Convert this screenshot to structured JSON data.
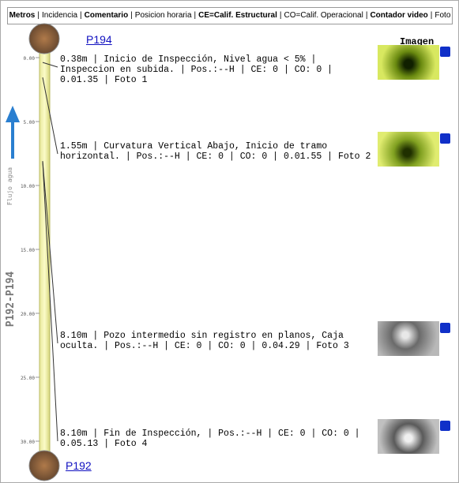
{
  "legend": {
    "separator": "|",
    "items": [
      {
        "text": "Metros",
        "bold": true
      },
      {
        "text": "Incidencia",
        "bold": false
      },
      {
        "text": "Comentario",
        "bold": true
      },
      {
        "text": "Posicion horaria",
        "bold": false
      },
      {
        "text": "CE=Calif. Estructural",
        "bold": true
      },
      {
        "text": "CO=Calif. Operacional",
        "bold": false
      },
      {
        "text": "Contador video",
        "bold": true
      },
      {
        "text": "Foto",
        "bold": false
      }
    ]
  },
  "start_node": "P194",
  "end_node": "P192",
  "image_header": "Imagen",
  "section_label": "P192-P194",
  "flow_label": "Flujo agua",
  "scale": {
    "range": [
      0,
      30
    ],
    "ticks": [
      {
        "value": 0,
        "label": "0.00"
      },
      {
        "value": 5,
        "label": "5.00"
      },
      {
        "value": 10,
        "label": "10.00"
      },
      {
        "value": 15,
        "label": "15.00"
      },
      {
        "value": 20,
        "label": "20.00"
      },
      {
        "value": 25,
        "label": "25.00"
      },
      {
        "value": 30,
        "label": "30.00"
      }
    ]
  },
  "events": [
    {
      "distance": {
        "value": 0.38,
        "label": "0.38m"
      },
      "description": " | Inicio de Inspección, Nivel agua < 5% | Inspeccion en subida. | Pos.:--H | CE: 0 | CO: 0 | 0.01.35 | Foto 1"
    },
    {
      "distance": {
        "value": 1.55,
        "label": "1.55m"
      },
      "description": " | Curvatura Vertical Abajo, Inicio de tramo horizontal. | Pos.:--H | CE: 0 | CO: 0 | 0.01.55 | Foto 2"
    },
    {
      "distance": {
        "value": 8.1,
        "label": "8.10m"
      },
      "description": " | Pozo intermedio sin registro en planos, Caja oculta. | Pos.:--H | CE: 0 | CO: 0 | 0.04.29 | Foto 3"
    },
    {
      "distance": {
        "value": 8.1,
        "label": "8.10m"
      },
      "description": " | Fin de Inspección, | Pos.:--H | CE: 0 | CO: 0 | 0.05.13 | Foto 4"
    }
  ]
}
